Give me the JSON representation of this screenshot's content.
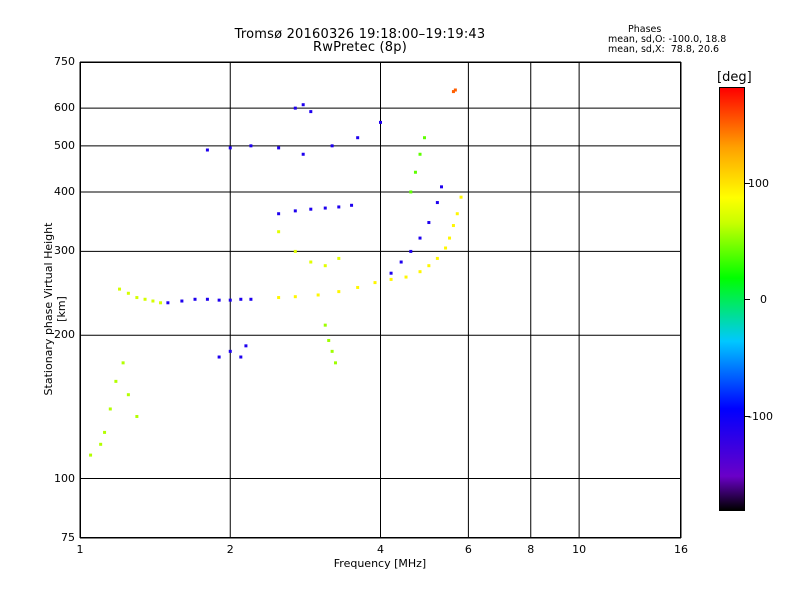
{
  "header": {
    "title_line1": "Tromsø 20160326 19:18:00–19:19:43",
    "title_line2": "RwPretec (8p)",
    "phases_label": "Phases",
    "stat_o": "mean, sd,O: -100.0, 18.8",
    "stat_x": "mean, sd,X:  78.8, 20.6"
  },
  "colorbar": {
    "unit": "[deg]",
    "ticks": [
      "100",
      "0",
      "-100"
    ]
  },
  "chart_data": {
    "type": "scatter",
    "xlabel": "Frequency [MHz]",
    "ylabel": "Stationary phase Virtual Height [km]",
    "xscale": "log",
    "yscale": "log",
    "xlim": [
      1,
      16
    ],
    "ylim": [
      75,
      750
    ],
    "xticks": [
      "1",
      "2",
      "4",
      "6",
      "8",
      "10",
      "16"
    ],
    "yticks": [
      "75",
      "100",
      "200",
      "300",
      "400",
      "500",
      "600",
      "750"
    ],
    "grid": true,
    "color_variable": "phase [deg]",
    "series": [
      {
        "points": [
          [
            1.05,
            112
          ],
          [
            1.1,
            118
          ],
          [
            1.12,
            125
          ],
          [
            1.15,
            140
          ],
          [
            1.18,
            160
          ],
          [
            1.22,
            175
          ],
          [
            1.25,
            150
          ],
          [
            1.3,
            135
          ]
        ],
        "phase": 60
      },
      {
        "points": [
          [
            1.2,
            250
          ],
          [
            1.25,
            245
          ],
          [
            1.3,
            240
          ],
          [
            1.35,
            238
          ],
          [
            1.4,
            236
          ],
          [
            1.45,
            234
          ]
        ],
        "phase": 70
      },
      {
        "points": [
          [
            1.5,
            234
          ],
          [
            1.6,
            236
          ],
          [
            1.7,
            238
          ],
          [
            1.8,
            238
          ],
          [
            1.9,
            237
          ],
          [
            2.0,
            237
          ],
          [
            2.1,
            238
          ],
          [
            2.2,
            238
          ]
        ],
        "phase": -110
      },
      {
        "points": [
          [
            2.5,
            240
          ],
          [
            2.7,
            241
          ],
          [
            3.0,
            243
          ],
          [
            3.3,
            247
          ],
          [
            3.6,
            252
          ],
          [
            3.9,
            258
          ],
          [
            4.2,
            262
          ],
          [
            4.5,
            265
          ],
          [
            4.8,
            272
          ],
          [
            5.0,
            280
          ],
          [
            5.2,
            290
          ],
          [
            5.4,
            305
          ],
          [
            5.5,
            320
          ],
          [
            5.6,
            340
          ],
          [
            5.7,
            360
          ],
          [
            5.8,
            390
          ]
        ],
        "phase": 90
      },
      {
        "points": [
          [
            4.2,
            270
          ],
          [
            4.4,
            285
          ],
          [
            4.6,
            300
          ],
          [
            4.8,
            320
          ],
          [
            5.0,
            345
          ],
          [
            5.2,
            380
          ],
          [
            5.3,
            410
          ]
        ],
        "phase": -110
      },
      {
        "points": [
          [
            2.5,
            360
          ],
          [
            2.7,
            365
          ],
          [
            2.9,
            368
          ],
          [
            3.1,
            370
          ],
          [
            3.3,
            372
          ],
          [
            3.5,
            375
          ]
        ],
        "phase": -110
      },
      {
        "points": [
          [
            2.5,
            330
          ],
          [
            2.7,
            300
          ],
          [
            2.9,
            285
          ],
          [
            3.1,
            280
          ],
          [
            3.3,
            290
          ]
        ],
        "phase": 75
      },
      {
        "points": [
          [
            1.8,
            490
          ],
          [
            2.0,
            495
          ],
          [
            2.2,
            500
          ],
          [
            2.5,
            495
          ],
          [
            2.8,
            480
          ],
          [
            3.2,
            500
          ],
          [
            3.6,
            520
          ],
          [
            4.0,
            560
          ]
        ],
        "phase": -110
      },
      {
        "points": [
          [
            2.7,
            600
          ],
          [
            2.8,
            610
          ],
          [
            2.9,
            590
          ]
        ],
        "phase": -110
      },
      {
        "points": [
          [
            3.1,
            210
          ],
          [
            3.15,
            195
          ],
          [
            3.2,
            185
          ],
          [
            3.25,
            175
          ]
        ],
        "phase": 55
      },
      {
        "points": [
          [
            1.9,
            180
          ],
          [
            2.0,
            185
          ],
          [
            2.1,
            180
          ],
          [
            2.15,
            190
          ]
        ],
        "phase": -110
      },
      {
        "points": [
          [
            5.6,
            650
          ],
          [
            5.65,
            655
          ]
        ],
        "phase": 150
      },
      {
        "points": [
          [
            4.6,
            400
          ],
          [
            4.7,
            440
          ],
          [
            4.8,
            480
          ],
          [
            4.9,
            520
          ]
        ],
        "phase": 40
      }
    ]
  }
}
